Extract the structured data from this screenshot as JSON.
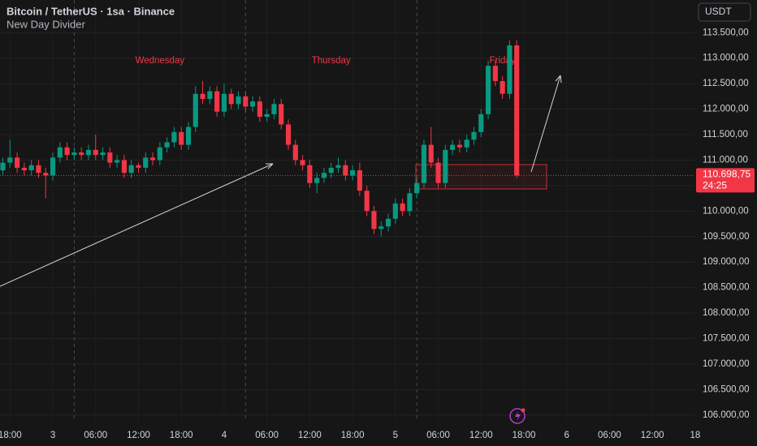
{
  "chart_data": {
    "type": "candlestick",
    "title": "Bitcoin / TetherUS · 1sa · Binance",
    "subtitle": "New Day Divider",
    "currency": "USDT",
    "up_color": "#089981",
    "down_color": "#f23645",
    "x": [
      -7,
      -6,
      -5,
      -4,
      -3,
      -2,
      -1,
      0,
      1,
      2,
      3,
      4,
      5,
      6,
      7,
      8,
      9,
      10,
      11,
      12,
      13,
      14,
      15,
      16,
      17,
      18,
      19,
      20,
      21,
      22,
      23,
      24,
      25,
      26,
      27,
      28,
      29,
      30,
      31,
      32,
      33,
      34,
      35,
      36,
      37,
      38,
      39,
      40,
      41,
      42,
      43,
      44,
      45,
      46,
      47,
      48,
      49,
      50,
      51,
      52,
      53,
      54,
      55,
      56,
      57,
      58,
      59,
      60,
      61,
      62,
      63,
      64,
      65
    ],
    "open": [
      110800,
      110950,
      111050,
      110850,
      110800,
      110900,
      110750,
      110700,
      111050,
      111250,
      111100,
      111150,
      111100,
      111200,
      111100,
      111150,
      110950,
      111000,
      110750,
      110900,
      110850,
      111050,
      111000,
      111250,
      111350,
      111550,
      111300,
      111650,
      112300,
      112200,
      112350,
      111950,
      112300,
      112100,
      112250,
      112050,
      112150,
      111850,
      111900,
      112100,
      111700,
      111300,
      111000,
      110900,
      110550,
      110650,
      110750,
      110850,
      110900,
      110700,
      110800,
      110400,
      110000,
      109650,
      109700,
      109850,
      110150,
      110000,
      110350,
      110550,
      111300,
      110950,
      110550,
      111200,
      111300,
      111250,
      111400,
      111550,
      111900,
      112850,
      112550,
      112300,
      113250
    ],
    "high": [
      111050,
      111400,
      111150,
      110950,
      111000,
      111000,
      110850,
      111150,
      111350,
      111350,
      111250,
      111250,
      111300,
      111500,
      111250,
      111250,
      111100,
      111100,
      111000,
      110950,
      111150,
      111150,
      111350,
      111450,
      111650,
      111650,
      111750,
      112450,
      112550,
      112450,
      112450,
      112500,
      112400,
      112350,
      112350,
      112250,
      112250,
      112000,
      112200,
      112200,
      111800,
      111400,
      111100,
      111000,
      110750,
      110850,
      110950,
      111050,
      111000,
      110900,
      110950,
      110500,
      110100,
      109800,
      109950,
      110250,
      110250,
      110450,
      110650,
      111400,
      111650,
      111050,
      111300,
      111400,
      111400,
      111500,
      111650,
      112000,
      112950,
      112950,
      112650,
      113350,
      113350
    ],
    "low": [
      110700,
      110850,
      110750,
      110700,
      110700,
      110650,
      110250,
      110600,
      110950,
      111000,
      111000,
      111000,
      111000,
      111000,
      111000,
      110850,
      110850,
      110650,
      110650,
      110750,
      110750,
      110900,
      110900,
      111150,
      111250,
      111200,
      111200,
      111550,
      112100,
      112100,
      111850,
      111850,
      112000,
      112000,
      111950,
      111950,
      111750,
      111750,
      111800,
      111600,
      111200,
      110900,
      110800,
      110450,
      110350,
      110550,
      110650,
      110750,
      110600,
      110600,
      110300,
      109900,
      109550,
      109500,
      109600,
      109750,
      109900,
      109900,
      110250,
      110450,
      110850,
      110450,
      110450,
      111100,
      111150,
      111150,
      111300,
      111450,
      111800,
      112450,
      112200,
      112200,
      110650
    ],
    "close": [
      110950,
      111050,
      110850,
      110800,
      110900,
      110750,
      110700,
      111050,
      111250,
      111100,
      111150,
      111100,
      111200,
      111100,
      111150,
      110950,
      111000,
      110750,
      110900,
      110850,
      111050,
      111000,
      111250,
      111350,
      111550,
      111300,
      111650,
      112300,
      112200,
      112350,
      111950,
      112300,
      112100,
      112250,
      112050,
      112150,
      111850,
      111900,
      112100,
      111700,
      111300,
      111000,
      110900,
      110550,
      110650,
      110750,
      110850,
      110900,
      110700,
      110800,
      110400,
      110000,
      109650,
      109700,
      109850,
      110150,
      110000,
      110350,
      110550,
      111300,
      110950,
      110550,
      111200,
      111300,
      111250,
      111400,
      111550,
      111900,
      112850,
      112550,
      112300,
      113250,
      110698.75
    ],
    "day_dividers": [
      3,
      27,
      51
    ],
    "day_labels": [
      "Wednesday",
      "Thursday",
      "Friday"
    ],
    "last_price": {
      "value": 110698.75,
      "label": "110.698,75"
    },
    "countdown": "24:25",
    "xlim": [
      -7.4,
      89.9
    ],
    "xticks": [
      {
        "value": -6,
        "label": "18:00"
      },
      {
        "value": 0,
        "label": "3"
      },
      {
        "value": 6,
        "label": "06:00"
      },
      {
        "value": 12,
        "label": "12:00"
      },
      {
        "value": 18,
        "label": "18:00"
      },
      {
        "value": 24,
        "label": "4"
      },
      {
        "value": 30,
        "label": "06:00"
      },
      {
        "value": 36,
        "label": "12:00"
      },
      {
        "value": 42,
        "label": "18:00"
      },
      {
        "value": 48,
        "label": "5"
      },
      {
        "value": 54,
        "label": "06:00"
      },
      {
        "value": 60,
        "label": "12:00"
      },
      {
        "value": 66,
        "label": "18:00"
      },
      {
        "value": 72,
        "label": "6"
      },
      {
        "value": 78,
        "label": "06:00"
      },
      {
        "value": 84,
        "label": "12:00"
      },
      {
        "value": 90,
        "label": "18"
      }
    ],
    "ylim": [
      105870,
      114140
    ],
    "yticks": [
      {
        "value": 106000,
        "label": "106.000,00"
      },
      {
        "value": 106500,
        "label": "106.500,00"
      },
      {
        "value": 107000,
        "label": "107.000,00"
      },
      {
        "value": 107500,
        "label": "107.500,00"
      },
      {
        "value": 108000,
        "label": "108.000,00"
      },
      {
        "value": 108500,
        "label": "108.500,00"
      },
      {
        "value": 109000,
        "label": "109.000,00"
      },
      {
        "value": 109500,
        "label": "109.500,00"
      },
      {
        "value": 110000,
        "label": "110.000,00"
      },
      {
        "value": 110500,
        "label": "110.500,00"
      },
      {
        "value": 111000,
        "label": "111.000,00"
      },
      {
        "value": 111500,
        "label": "111.500,00"
      },
      {
        "value": 112000,
        "label": "112.000,00"
      },
      {
        "value": 112500,
        "label": "112.500,00"
      },
      {
        "value": 113000,
        "label": "113.000,00"
      },
      {
        "value": 113500,
        "label": "113.500,00"
      }
    ],
    "grid": true
  }
}
